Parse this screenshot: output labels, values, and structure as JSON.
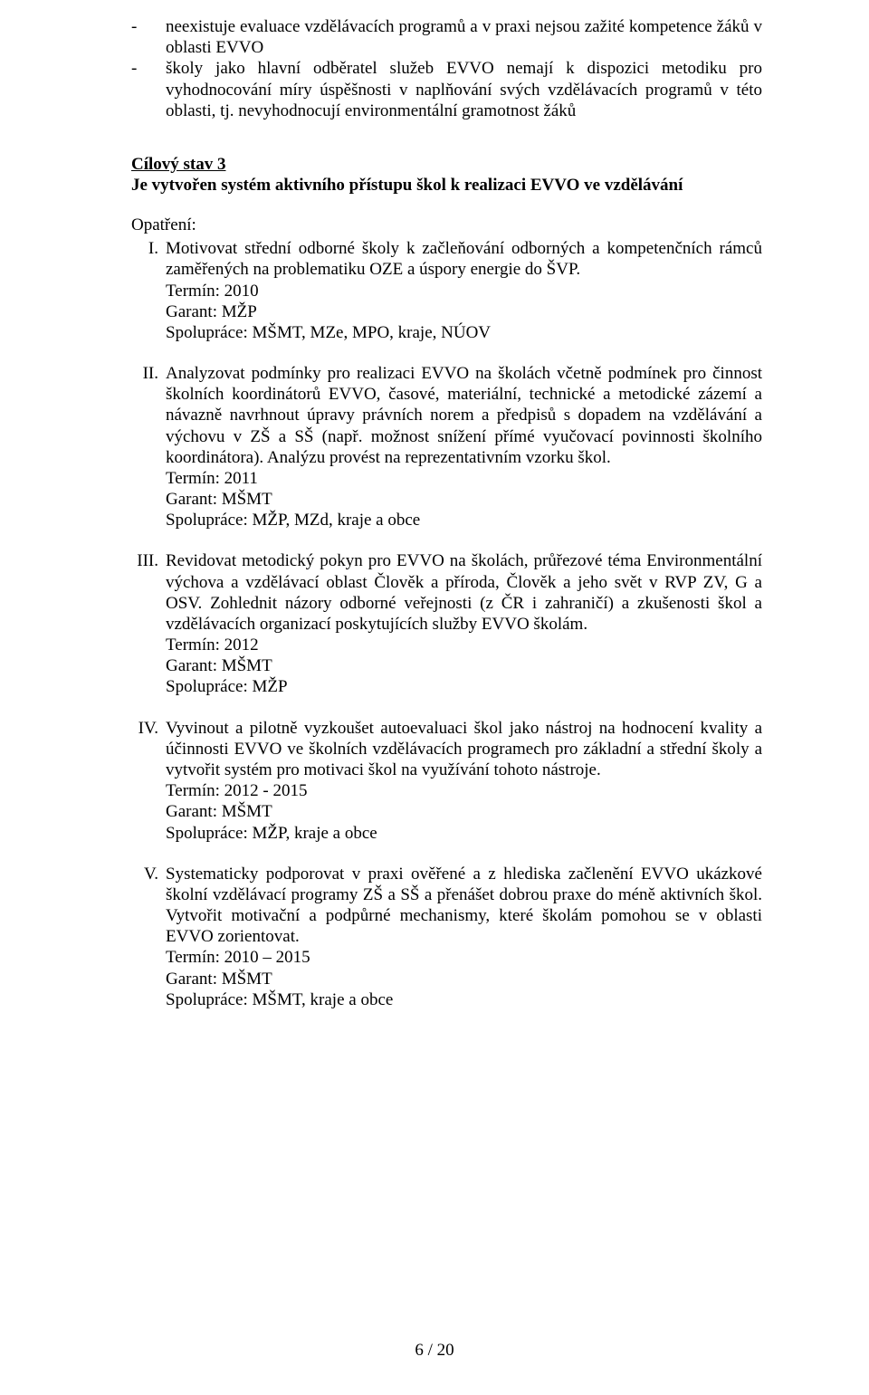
{
  "bullets": [
    "neexistuje evaluace vzdělávacích programů a v praxi nejsou zažité kompetence žáků v oblasti EVVO",
    "školy jako hlavní odběratel služeb EVVO nemají k dispozici metodiku pro vyhodnocování míry úspěšnosti v naplňování svých vzdělávacích programů v této oblasti, tj. nevyhodnocují environmentální gramotnost žáků"
  ],
  "cilovy": {
    "head": "Cílový stav 3",
    "sub": "Je vytvořen systém aktivního přístupu škol k realizaci EVVO ve vzdělávání"
  },
  "opatreni_label": "Opatření:",
  "items": [
    {
      "num": "I.",
      "text": "Motivovat střední odborné školy k začleňování odborných a kompetenčních rámců zaměřených na problematiku OZE a úspory energie do ŠVP.",
      "termin": "Termín: 2010",
      "garant": "Garant: MŽP",
      "spoluprace": "Spolupráce: MŠMT, MZe, MPO, kraje, NÚOV"
    },
    {
      "num": "II.",
      "text": "Analyzovat podmínky pro realizaci EVVO na školách včetně podmínek pro činnost školních koordinátorů EVVO, časové, materiální, technické a metodické zázemí a návazně navrhnout úpravy právních norem a předpisů s dopadem na vzdělávání a výchovu v ZŠ a SŠ (např. možnost snížení přímé vyučovací povinnosti školního koordinátora). Analýzu provést na reprezentativním vzorku škol.",
      "termin": "Termín: 2011",
      "garant": "Garant: MŠMT",
      "spoluprace": "Spolupráce: MŽP, MZd,  kraje a obce"
    },
    {
      "num": "III.",
      "text": "Revidovat metodický pokyn pro EVVO na školách, průřezové téma Environmentální výchova a vzdělávací oblast Člověk a příroda, Člověk a jeho svět v RVP ZV, G a OSV. Zohlednit názory odborné veřejnosti (z ČR i zahraničí) a zkušenosti škol a vzdělávacích organizací poskytujících služby EVVO školám.",
      "termin": "Termín: 2012",
      "garant": "Garant: MŠMT",
      "spoluprace": "Spolupráce: MŽP"
    },
    {
      "num": "IV.",
      "text": "Vyvinout a pilotně vyzkoušet autoevaluaci škol jako nástroj na hodnocení kvality a účinnosti EVVO ve školních vzdělávacích programech pro základní a střední školy a vytvořit systém pro motivaci škol na využívání tohoto nástroje.",
      "termin": "Termín: 2012 - 2015",
      "garant": "Garant: MŠMT",
      "spoluprace": "Spolupráce: MŽP, kraje a obce"
    },
    {
      "num": "V.",
      "text": "Systematicky podporovat v praxi ověřené a z hlediska začlenění EVVO ukázkové školní vzdělávací programy ZŠ a SŠ a přenášet dobrou praxe do méně aktivních škol. Vytvořit motivační a podpůrné mechanismy, které školám pomohou se v oblasti EVVO zorientovat.",
      "termin": "Termín: 2010 – 2015",
      "garant": "Garant: MŠMT",
      "spoluprace": "Spolupráce: MŠMT, kraje a obce"
    }
  ],
  "footer": "6 / 20"
}
